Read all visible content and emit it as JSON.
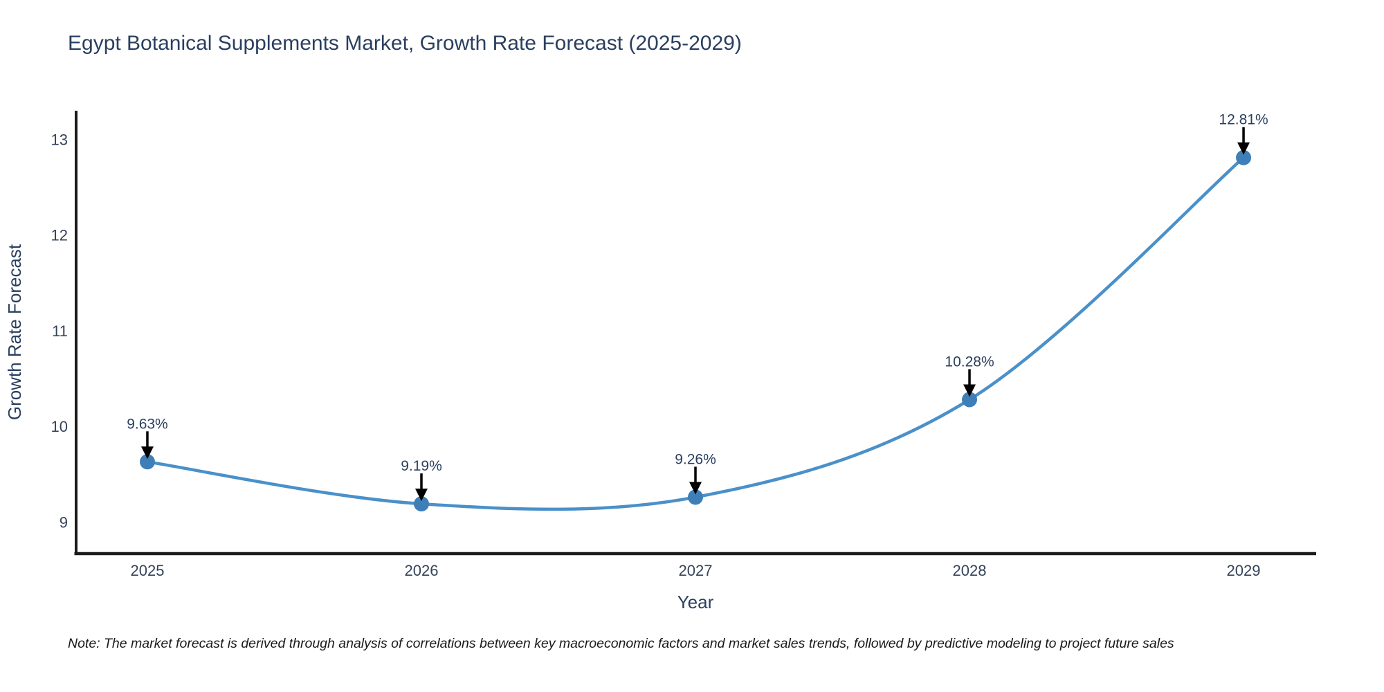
{
  "title": "Egypt Botanical Supplements Market, Growth Rate Forecast (2025-2029)",
  "note": "Note: The market forecast is derived through analysis of correlations between key macroeconomic factors and market sales trends, followed by predictive modeling to project future sales",
  "chart_data": {
    "type": "line",
    "title": "Egypt Botanical Supplements Market, Growth Rate Forecast (2025-2029)",
    "xlabel": "Year",
    "ylabel": "Growth Rate Forecast",
    "x": [
      2025,
      2026,
      2027,
      2028,
      2029
    ],
    "values": [
      9.63,
      9.19,
      9.26,
      10.28,
      12.81
    ],
    "point_labels": [
      "9.63%",
      "9.19%",
      "9.26%",
      "10.28%",
      "12.81%"
    ],
    "yticks": [
      13,
      12,
      11,
      10,
      9
    ],
    "ylim": [
      8.67,
      13.3
    ],
    "xlim": [
      2024.74,
      2029.26
    ],
    "grid": false,
    "legend_position": "none",
    "smooth": true,
    "line_color": "#4a90c9",
    "marker_color": "#3f7fb8",
    "axis_color": "#1c1c1c",
    "annotation_arrow_color": "#000000",
    "text_color": "#2a3f5f"
  }
}
